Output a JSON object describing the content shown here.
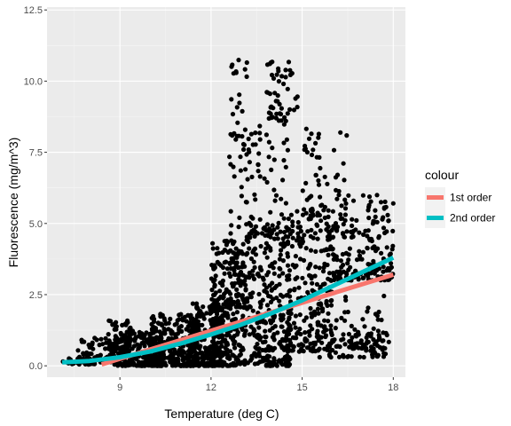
{
  "chart_data": {
    "type": "scatter",
    "title": "",
    "xlabel": "Temperature (deg C)",
    "ylabel": "Fluorescence (mg/m^3)",
    "xlim": [
      6.6,
      18.4
    ],
    "ylim": [
      -0.4,
      12.6
    ],
    "x_ticks": [
      9,
      12,
      15,
      18
    ],
    "x_tick_labels": [
      "9",
      "12",
      "15",
      "18"
    ],
    "y_ticks": [
      0.0,
      2.5,
      5.0,
      7.5,
      10.0,
      12.5
    ],
    "y_tick_labels": [
      "0.0",
      "2.5",
      "5.0",
      "7.5",
      "10.0",
      "12.5"
    ],
    "grid": true,
    "background": "#ebebeb",
    "legend": {
      "title": "colour",
      "position": "right",
      "entries": [
        {
          "label": "1st order",
          "color": "#f8766d"
        },
        {
          "label": "2nd order",
          "color": "#00bfc4"
        }
      ]
    },
    "series": [
      {
        "name": "1st order",
        "type": "line",
        "color": "#f8766d",
        "x": [
          8.4,
          18.0
        ],
        "y": [
          0.05,
          3.2
        ]
      },
      {
        "name": "2nd order",
        "type": "line",
        "color": "#00bfc4",
        "x": [
          7.1,
          8.0,
          9.0,
          10.0,
          11.0,
          12.0,
          13.0,
          14.0,
          15.0,
          16.0,
          17.0,
          18.0
        ],
        "y": [
          0.12,
          0.17,
          0.3,
          0.5,
          0.78,
          1.1,
          1.45,
          1.85,
          2.3,
          2.8,
          3.3,
          3.8
        ]
      }
    ],
    "points_color": "#000000",
    "points": {
      "clusters": [
        {
          "x_range": [
            7.1,
            8.4
          ],
          "y_range": [
            0.05,
            0.3
          ],
          "n": 40
        },
        {
          "x_range": [
            7.6,
            9.2
          ],
          "y_range": [
            0.1,
            1.0
          ],
          "n": 70
        },
        {
          "x_range": [
            8.6,
            9.5
          ],
          "y_range": [
            0.6,
            1.6
          ],
          "n": 50
        },
        {
          "x_range": [
            8.8,
            10.5
          ],
          "y_range": [
            0.0,
            1.2
          ],
          "n": 220
        },
        {
          "x_range": [
            10.0,
            11.6
          ],
          "y_range": [
            0.0,
            1.9
          ],
          "n": 260
        },
        {
          "x_range": [
            11.2,
            12.4
          ],
          "y_range": [
            0.0,
            2.2
          ],
          "n": 220
        },
        {
          "x_range": [
            12.0,
            13.0
          ],
          "y_range": [
            0.0,
            4.4
          ],
          "n": 260
        },
        {
          "x_range": [
            12.6,
            13.2
          ],
          "y_range": [
            2.0,
            10.8
          ],
          "n": 80
        },
        {
          "x_range": [
            13.0,
            14.6
          ],
          "y_range": [
            0.0,
            5.0
          ],
          "n": 300
        },
        {
          "x_range": [
            13.2,
            14.6
          ],
          "y_range": [
            4.5,
            8.5
          ],
          "n": 70
        },
        {
          "x_range": [
            13.8,
            14.9
          ],
          "y_range": [
            8.6,
            10.8
          ],
          "n": 50
        },
        {
          "x_range": [
            14.5,
            16.0
          ],
          "y_range": [
            0.5,
            5.5
          ],
          "n": 220
        },
        {
          "x_range": [
            15.0,
            16.5
          ],
          "y_range": [
            4.5,
            8.5
          ],
          "n": 70
        },
        {
          "x_range": [
            16.0,
            18.0
          ],
          "y_range": [
            3.0,
            6.0
          ],
          "n": 180
        },
        {
          "x_range": [
            15.5,
            17.8
          ],
          "y_range": [
            0.3,
            2.5
          ],
          "n": 90
        },
        {
          "x_range": [
            16.5,
            17.9
          ],
          "y_range": [
            0.6,
            1.2
          ],
          "n": 40
        }
      ]
    }
  }
}
